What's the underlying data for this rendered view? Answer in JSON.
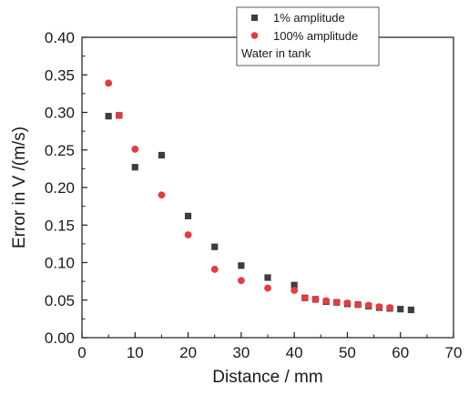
{
  "chart_data": {
    "type": "scatter",
    "title": "",
    "xlabel": "Distance / mm",
    "ylabel": "Error in V /(m/s)",
    "xlim": [
      0,
      70
    ],
    "ylim": [
      0,
      0.4
    ],
    "xticks": [
      "0",
      "10",
      "20",
      "30",
      "40",
      "50",
      "60",
      "70"
    ],
    "yticks": [
      "0.00",
      "0.05",
      "0.10",
      "0.15",
      "0.20",
      "0.25",
      "0.30",
      "0.35",
      "0.40"
    ],
    "grid": false,
    "legend_position": "top-right",
    "legend_note": "Water in tank",
    "series": [
      {
        "name": "1% amplitude",
        "marker": "square",
        "color": "#3d3d3d",
        "points": [
          [
            5,
            0.295
          ],
          [
            7,
            0.296
          ],
          [
            10,
            0.227
          ],
          [
            15,
            0.243
          ],
          [
            20,
            0.162
          ],
          [
            25,
            0.121
          ],
          [
            30,
            0.096
          ],
          [
            35,
            0.08
          ],
          [
            40,
            0.07
          ],
          [
            42,
            0.053
          ],
          [
            44,
            0.051
          ],
          [
            46,
            0.048
          ],
          [
            48,
            0.047
          ],
          [
            50,
            0.045
          ],
          [
            52,
            0.044
          ],
          [
            54,
            0.042
          ],
          [
            56,
            0.04
          ],
          [
            58,
            0.039
          ],
          [
            60,
            0.038
          ],
          [
            62,
            0.037
          ]
        ]
      },
      {
        "name": "100% amplitude",
        "marker": "circle",
        "color": "#e8393f",
        "points": [
          [
            5,
            0.339
          ],
          [
            7,
            0.296
          ],
          [
            10,
            0.251
          ],
          [
            15,
            0.19
          ],
          [
            20,
            0.137
          ],
          [
            25,
            0.091
          ],
          [
            30,
            0.076
          ],
          [
            35,
            0.066
          ],
          [
            40,
            0.063
          ],
          [
            42,
            0.053
          ],
          [
            44,
            0.051
          ],
          [
            46,
            0.049
          ],
          [
            48,
            0.047
          ],
          [
            50,
            0.046
          ],
          [
            52,
            0.044
          ],
          [
            54,
            0.043
          ],
          [
            56,
            0.041
          ],
          [
            58,
            0.04
          ]
        ]
      }
    ]
  }
}
